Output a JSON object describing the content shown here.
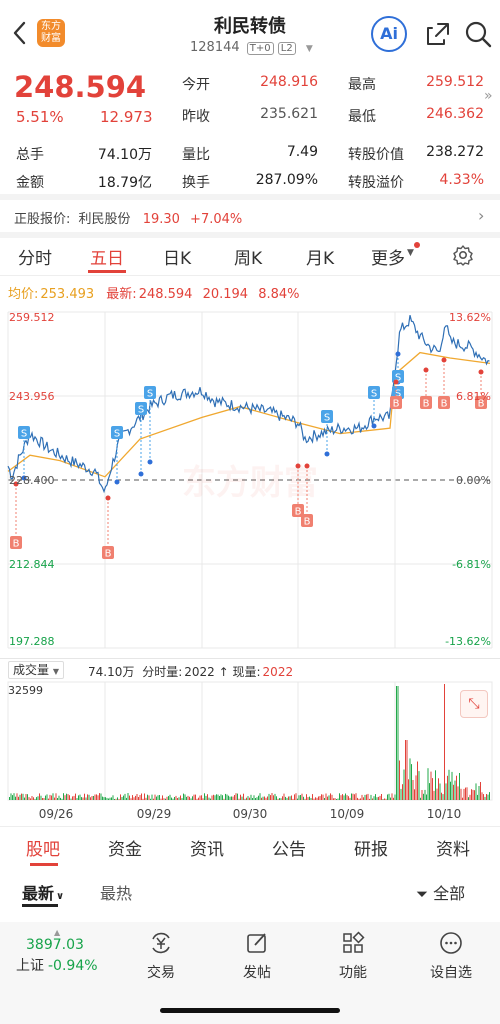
{
  "header": {
    "title": "利民转债",
    "code": "128144",
    "badge_t0": "T+0",
    "badge_l2": "L2",
    "logo_text": "东方财富",
    "ai_label": "Ai"
  },
  "quote": {
    "price": "248.594",
    "change_pct": "5.51%",
    "change_abs": "12.973",
    "rows": [
      {
        "l1": "今开",
        "v1": "248.916",
        "l2": "最高",
        "v2": "259.512"
      },
      {
        "l1": "昨收",
        "v1": "235.621",
        "l2": "最低",
        "v2": "246.362"
      }
    ],
    "stats": [
      {
        "l1": "总手",
        "v1": "74.10万",
        "l2": "量比",
        "v2": "7.49",
        "l3": "转股价值",
        "v3": "238.272"
      },
      {
        "l1": "金额",
        "v1": "18.79亿",
        "l2": "换手",
        "v2": "287.09%",
        "l3": "转股溢价",
        "v3": "4.33%"
      }
    ],
    "stock_label": "正股报价:",
    "stock_name": "利民股份",
    "stock_price": "19.30",
    "stock_change": "+7.04%"
  },
  "tabs": [
    "分时",
    "五日",
    "日K",
    "周K",
    "月K",
    "更多"
  ],
  "chart_info": {
    "avg_label": "均价:",
    "avg_value": "253.493",
    "latest_label": "最新:",
    "latest_value": "248.594",
    "latest_change": "20.194",
    "latest_pct": "8.84%"
  },
  "chart_data": {
    "type": "line",
    "title": "",
    "y_ticks_left": [
      "259.512",
      "243.956",
      "228.400",
      "212.844",
      "197.288"
    ],
    "y_ticks_right": [
      "13.62%",
      "6.81%",
      "0.00%",
      "-6.81%",
      "-13.62%"
    ],
    "ylim": [
      197.288,
      259.512
    ],
    "x_ticks": [
      "09/26",
      "09/29",
      "09/30",
      "10/09",
      "10/10"
    ],
    "series": [],
    "volume_max_label": "32599",
    "buy_marker": "B",
    "sell_marker": "S"
  },
  "volume_bar": {
    "selector": "成交量",
    "total": "74.10万",
    "tick_label": "分时量:",
    "tick_value": "2022",
    "now_label": "现量:",
    "now_value": "2022"
  },
  "watermark": "东方财富",
  "sub_tabs": [
    "股吧",
    "资金",
    "资讯",
    "公告",
    "研报",
    "资料"
  ],
  "filter": {
    "latest": "最新",
    "hot": "最热",
    "all": "全部"
  },
  "bottom": {
    "index_value": "3897.03",
    "index_name": "上证",
    "index_change": "-0.94%",
    "nav": [
      "交易",
      "发帖",
      "功能",
      "设自选"
    ]
  },
  "colors": {
    "up": "#e2423a",
    "down": "#17a34a",
    "line": "#2f6fb5",
    "avg": "#f0a830",
    "accent": "#e2423a"
  }
}
